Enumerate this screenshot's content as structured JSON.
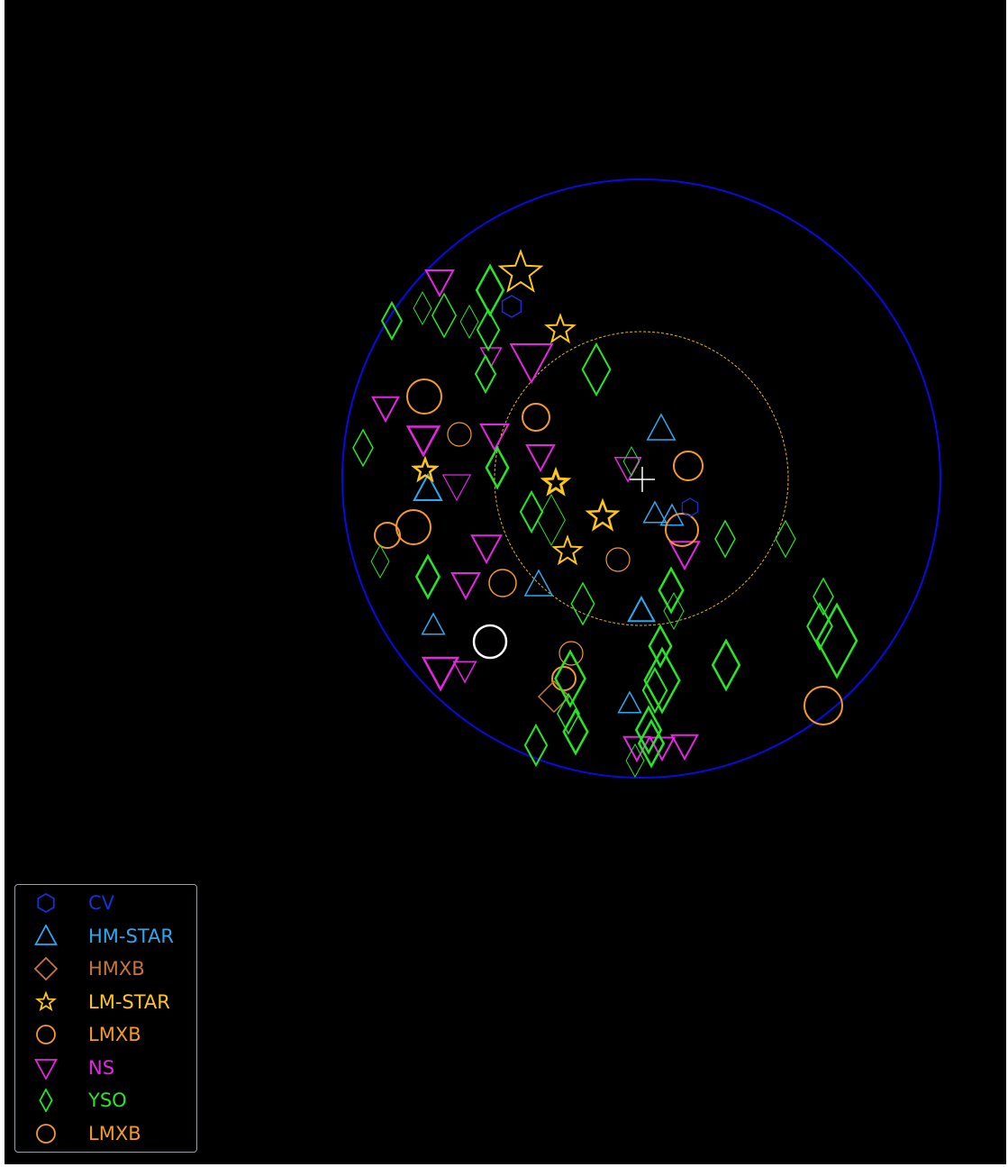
{
  "image": {
    "description_colors": {
      "background": "#000000",
      "mosaic_base": "#2a1468",
      "mosaic_noise": "#5a2bd0",
      "diffuse_emission": "#a23aa8",
      "outer_circle": "#0a0ae0",
      "inner_circle": "#e6b800",
      "center_cross": "#ffffff",
      "marked_source_circle": "#ffffff"
    }
  },
  "legend": {
    "items": [
      {
        "label": "CV",
        "icon": "hexagon-icon",
        "color": "#1a2fd6"
      },
      {
        "label": "HM-STAR",
        "icon": "triangle-up-icon",
        "color": "#2ca8f0"
      },
      {
        "label": "HMXB",
        "icon": "diamond-icon",
        "color": "#c8743a"
      },
      {
        "label": "LM-STAR",
        "icon": "star-icon",
        "color": "#ffc61a"
      },
      {
        "label": "LMXB",
        "icon": "circle-icon",
        "color": "#f39a28"
      },
      {
        "label": "NS",
        "icon": "triangle-down-icon",
        "color": "#e426e0"
      },
      {
        "label": "YSO",
        "icon": "thin-diamond-icon",
        "color": "#26e626"
      },
      {
        "label": "LMXB",
        "icon": "circle-icon",
        "color": "#f39a28"
      }
    ]
  }
}
